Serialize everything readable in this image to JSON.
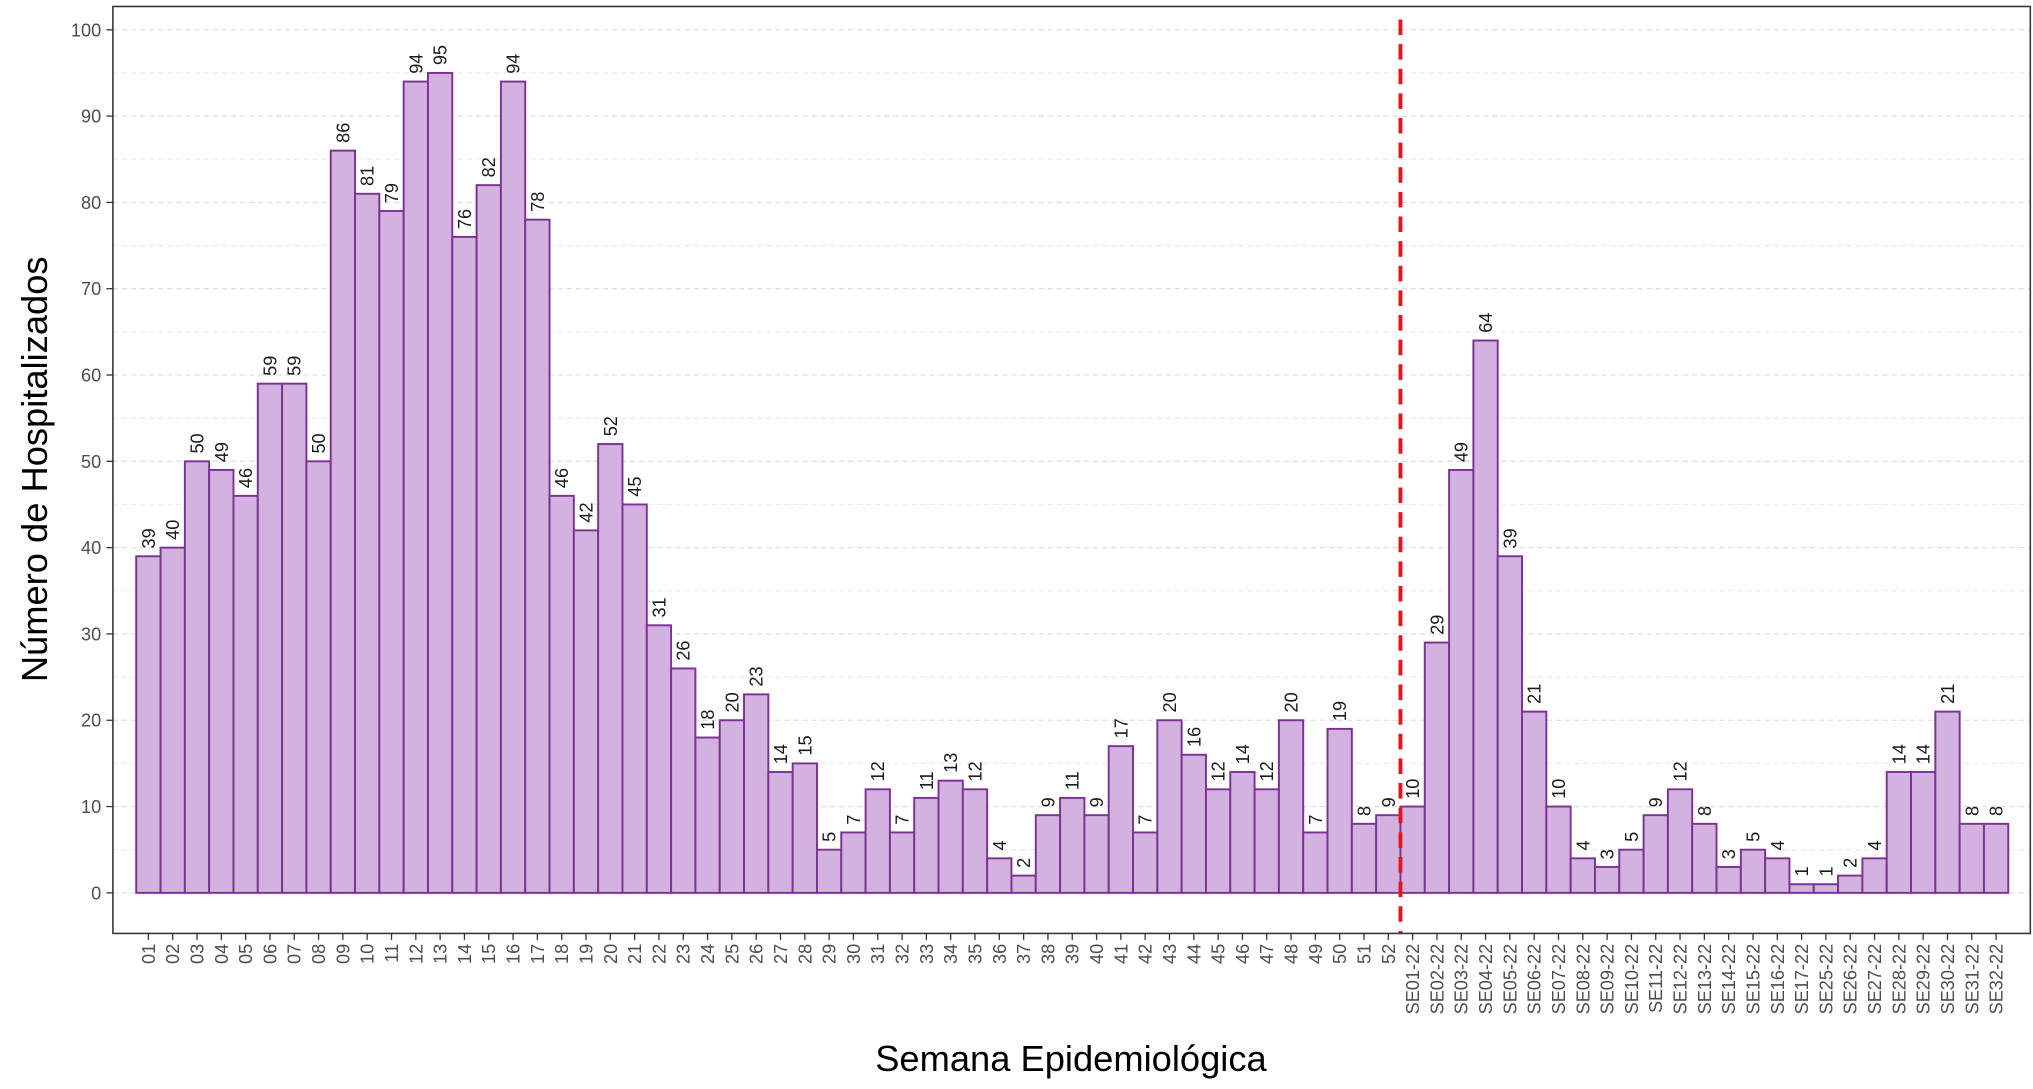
{
  "chart_data": {
    "type": "bar",
    "x_label": "Semana Epidemiológica",
    "y_label": "Número de Hospitalizados",
    "categories": [
      "01",
      "02",
      "03",
      "04",
      "05",
      "06",
      "07",
      "08",
      "09",
      "10",
      "11",
      "12",
      "13",
      "14",
      "15",
      "16",
      "17",
      "18",
      "19",
      "20",
      "21",
      "22",
      "23",
      "24",
      "25",
      "26",
      "27",
      "28",
      "29",
      "30",
      "31",
      "32",
      "33",
      "34",
      "35",
      "36",
      "37",
      "38",
      "39",
      "40",
      "41",
      "42",
      "43",
      "44",
      "45",
      "46",
      "47",
      "48",
      "49",
      "50",
      "51",
      "52",
      "SE01-22",
      "SE02-22",
      "SE03-22",
      "SE04-22",
      "SE05-22",
      "SE06-22",
      "SE07-22",
      "SE08-22",
      "SE09-22",
      "SE10-22",
      "SE11-22",
      "SE12-22",
      "SE13-22",
      "SE14-22",
      "SE15-22",
      "SE16-22",
      "SE17-22",
      "SE25-22",
      "SE26-22",
      "SE27-22",
      "SE28-22",
      "SE29-22",
      "SE30-22",
      "SE31-22",
      "SE32-22"
    ],
    "values": [
      39,
      40,
      50,
      49,
      46,
      59,
      59,
      50,
      86,
      81,
      79,
      94,
      95,
      76,
      82,
      94,
      78,
      46,
      42,
      52,
      45,
      31,
      26,
      18,
      20,
      23,
      14,
      15,
      5,
      7,
      12,
      7,
      11,
      13,
      12,
      4,
      2,
      9,
      11,
      9,
      17,
      7,
      20,
      16,
      12,
      14,
      12,
      20,
      7,
      19,
      8,
      9,
      10,
      29,
      49,
      64,
      39,
      21,
      10,
      4,
      3,
      5,
      9,
      12,
      8,
      3,
      5,
      4,
      1,
      1,
      2,
      4,
      14,
      14,
      21,
      8,
      8
    ],
    "color": "#d4b2e0",
    "edge_color": "#7b3294",
    "ylim": [
      -4.7,
      102.7
    ],
    "yticks": [
      0,
      10,
      20,
      30,
      40,
      50,
      60,
      70,
      80,
      90,
      100
    ],
    "grid": true
  }
}
